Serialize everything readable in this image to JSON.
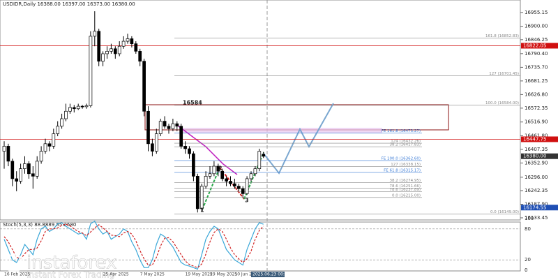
{
  "chart_data": [
    {
      "type": "candlestick",
      "title": "USDIDR,Daily  16388.00 16397.00 16373.00 16380.00",
      "categories": [
        "16 Feb 2025",
        null,
        null,
        null,
        null,
        null,
        null,
        null,
        null,
        null,
        null,
        null,
        null,
        null,
        null,
        null,
        null,
        null,
        null,
        null,
        null,
        null,
        null,
        null,
        "25 Apr 2025",
        null,
        null,
        null,
        null,
        null,
        null,
        null,
        null,
        "7 May 2025",
        null,
        null,
        null,
        null,
        null,
        null,
        null,
        null,
        null,
        null,
        "19 May 2025",
        null,
        null,
        null,
        null,
        null,
        "29 May 2025",
        null,
        null,
        null,
        null,
        null,
        "10 Jun 2025",
        null,
        null,
        null,
        null,
        null,
        null,
        null
      ],
      "cursor_label": "2025.06.23 00:00",
      "candles": [
        [
          16400,
          16440,
          16330,
          16420
        ],
        [
          16420,
          16430,
          16340,
          16360
        ],
        [
          16360,
          16370,
          16260,
          16290
        ],
        [
          16290,
          16320,
          16240,
          16280
        ],
        [
          16280,
          16350,
          16270,
          16330
        ],
        [
          16330,
          16380,
          16310,
          16350
        ],
        [
          16350,
          16360,
          16290,
          16310
        ],
        [
          16310,
          16340,
          16250,
          16300
        ],
        [
          16300,
          16380,
          16290,
          16360
        ],
        [
          16360,
          16420,
          16350,
          16400
        ],
        [
          16400,
          16450,
          16390,
          16430
        ],
        [
          16430,
          16440,
          16400,
          16420
        ],
        [
          16420,
          16490,
          16410,
          16470
        ],
        [
          16470,
          16520,
          16460,
          16500
        ],
        [
          16500,
          16550,
          16490,
          16530
        ],
        [
          16530,
          16590,
          16520,
          16560
        ],
        [
          16560,
          16590,
          16550,
          16575
        ],
        [
          16575,
          16585,
          16555,
          16570
        ],
        [
          16570,
          16590,
          16565,
          16580
        ],
        [
          16580,
          16585,
          16570,
          16578
        ],
        [
          16578,
          16590,
          16570,
          16582
        ],
        [
          16582,
          16880,
          16575,
          16860
        ],
        [
          16860,
          16960,
          16820,
          16880
        ],
        [
          16880,
          16890,
          16740,
          16760
        ],
        [
          16760,
          16800,
          16740,
          16790
        ],
        [
          16790,
          16820,
          16770,
          16800
        ],
        [
          16800,
          16830,
          16790,
          16810
        ],
        [
          16810,
          16820,
          16770,
          16790
        ],
        [
          16790,
          16840,
          16780,
          16820
        ],
        [
          16820,
          16860,
          16810,
          16840
        ],
        [
          16840,
          16870,
          16830,
          16850
        ],
        [
          16850,
          16860,
          16815,
          16830
        ],
        [
          16830,
          16840,
          16790,
          16800
        ],
        [
          16800,
          16810,
          16740,
          16760
        ],
        [
          16760,
          16770,
          16540,
          16560
        ],
        [
          16560,
          16580,
          16400,
          16430
        ],
        [
          16430,
          16450,
          16380,
          16400
        ],
        [
          16400,
          16490,
          16390,
          16470
        ],
        [
          16470,
          16530,
          16460,
          16520
        ],
        [
          16520,
          16540,
          16490,
          16500
        ],
        [
          16500,
          16510,
          16470,
          16490
        ],
        [
          16490,
          16530,
          16480,
          16510
        ],
        [
          16510,
          16520,
          16480,
          16500
        ],
        [
          16500,
          16510,
          16410,
          16420
        ],
        [
          16420,
          16440,
          16390,
          16410
        ],
        [
          16410,
          16420,
          16370,
          16390
        ],
        [
          16390,
          16400,
          16280,
          16300
        ],
        [
          16300,
          16310,
          16155,
          16170
        ],
        [
          16170,
          16270,
          16160,
          16260
        ],
        [
          16260,
          16320,
          16250,
          16300
        ],
        [
          16300,
          16340,
          16290,
          16310
        ],
        [
          16310,
          16360,
          16300,
          16340
        ],
        [
          16340,
          16350,
          16300,
          16320
        ],
        [
          16320,
          16330,
          16280,
          16290
        ],
        [
          16290,
          16300,
          16260,
          16280
        ],
        [
          16280,
          16300,
          16260,
          16270
        ],
        [
          16270,
          16290,
          16250,
          16260
        ],
        [
          16260,
          16270,
          16240,
          16250
        ],
        [
          16250,
          16260,
          16215,
          16230
        ],
        [
          16230,
          16300,
          16225,
          16290
        ],
        [
          16290,
          16320,
          16280,
          16310
        ],
        [
          16310,
          16340,
          16300,
          16330
        ],
        [
          16330,
          16410,
          16320,
          16400
        ],
        [
          16388,
          16397,
          16373,
          16380
        ]
      ],
      "ylim": [
        16125,
        17005
      ],
      "yticks": [
        {
          "value": 16955.15,
          "label": "16955.15"
        },
        {
          "value": 16900,
          "label": "16900.00"
        },
        {
          "value": 16846.25,
          "label": "16846.25"
        },
        {
          "value": 16790.4,
          "label": "16790.40"
        },
        {
          "value": 16735.7,
          "label": "16735.70"
        },
        {
          "value": 16681.25,
          "label": "16681.25"
        },
        {
          "value": 16626.8,
          "label": "16626.80"
        },
        {
          "value": 16572.35,
          "label": "16572.35"
        },
        {
          "value": 16516.9,
          "label": "16516.90"
        },
        {
          "value": 16461.8,
          "label": "16461.80"
        },
        {
          "value": 16407.35,
          "label": "16407.35"
        },
        {
          "value": 16352.9,
          "label": "16352.90"
        },
        {
          "value": 16296,
          "label": "16296.00"
        },
        {
          "value": 16242.35,
          "label": "16242.35"
        },
        {
          "value": 16187.9,
          "label": "16187.90"
        },
        {
          "value": 16133.45,
          "label": "16133.45"
        }
      ],
      "price_markers": [
        {
          "value": 16822.05,
          "label": "16822.05",
          "color": "#d01010"
        },
        {
          "value": 16447.75,
          "label": "16447.75",
          "color": "#d01010"
        },
        {
          "value": 16380,
          "label": "16380.00",
          "color": "#333333"
        },
        {
          "value": 16174.55,
          "label": "16174.55",
          "color": "#1f4fb4"
        }
      ],
      "levels": [
        {
          "label": "161.8 (16852.83)",
          "value": 16852.83,
          "color": "#888888"
        },
        {
          "label": "127 (16701.45)",
          "value": 16701.45,
          "color": "#888888"
        },
        {
          "label": "100.0 (16584.00)",
          "value": 16584,
          "color": "#888888"
        },
        {
          "label": "FE 161.8 (16473.27)",
          "value": 16473.27,
          "color": "#3b7bd6"
        },
        {
          "label": "124 (16432.26)",
          "value": 16432.26,
          "color": "#888888"
        },
        {
          "label": "38.2 (16417.83)",
          "value": 16417.83,
          "color": "#888888"
        },
        {
          "label": "FE 100.0 (16362.60)",
          "value": 16362.6,
          "color": "#3b7bd6"
        },
        {
          "label": "127 (16338.15)",
          "value": 16338.15,
          "color": "#888888"
        },
        {
          "label": "FE 61.8 (16315.17)",
          "value": 16315.17,
          "color": "#3b7bd6"
        },
        {
          "label": "38.2 (16274.95)",
          "value": 16274.95,
          "color": "#888888"
        },
        {
          "label": "78.6 (16251.66)",
          "value": 16251.66,
          "color": "#888888"
        },
        {
          "label": "78.6 (16237.89)",
          "value": 16237.89,
          "color": "#888888"
        },
        {
          "label": "0.0 (16215.00)",
          "value": 16215,
          "color": "#888888"
        },
        {
          "label": "0.0 (16149.00)",
          "value": 16149,
          "color": "#888888"
        }
      ],
      "annotations": [
        "16584",
        "1",
        "2",
        "3"
      ]
    },
    {
      "type": "line",
      "title": "Stoch(5,3,3) 88.8889 85.2580",
      "ylim": [
        0,
        100
      ],
      "yticks": [
        0,
        20,
        80,
        100
      ],
      "series": [
        {
          "color": "#3aa7d8",
          "values": [
            60,
            40,
            20,
            15,
            30,
            50,
            40,
            30,
            60,
            80,
            85,
            75,
            80,
            90,
            92,
            85,
            80,
            75,
            70,
            72,
            60,
            90,
            95,
            80,
            70,
            75,
            60,
            65,
            70,
            80,
            75,
            55,
            40,
            20,
            5,
            5,
            20,
            50,
            70,
            65,
            55,
            45,
            30,
            15,
            10,
            8,
            5,
            2,
            30,
            60,
            75,
            85,
            80,
            60,
            40,
            30,
            20,
            15,
            10,
            40,
            60,
            80,
            92,
            88.8889
          ]
        },
        {
          "color": "#d02020",
          "values": [
            65,
            55,
            40,
            25,
            22,
            32,
            40,
            40,
            43,
            57,
            75,
            80,
            80,
            82,
            87,
            89,
            86,
            80,
            75,
            72,
            67,
            74,
            82,
            88,
            82,
            75,
            68,
            67,
            65,
            72,
            75,
            70,
            57,
            38,
            22,
            10,
            10,
            25,
            47,
            62,
            63,
            55,
            43,
            30,
            18,
            11,
            8,
            5,
            12,
            31,
            55,
            73,
            80,
            75,
            60,
            43,
            30,
            22,
            15,
            22,
            37,
            60,
            77,
            85.258
          ]
        }
      ]
    }
  ],
  "watermark": {
    "brand": "instaforex",
    "tagline": "Instant Forex Trading"
  }
}
